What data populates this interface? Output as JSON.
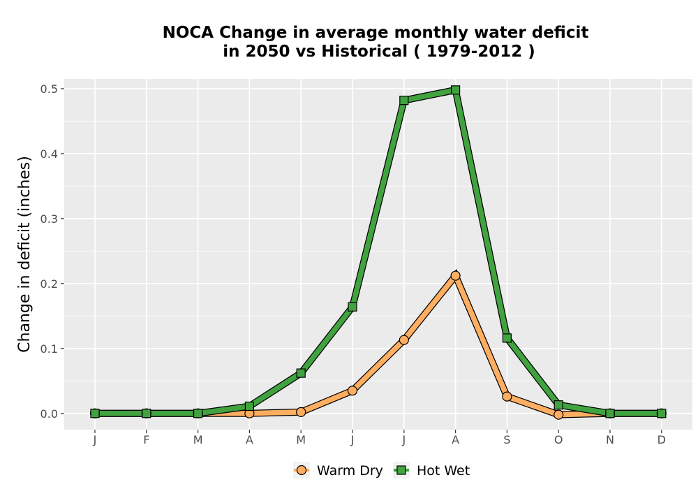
{
  "chart_data": {
    "type": "line",
    "title": "NOCA  Change in average monthly water deficit",
    "subtitle": "in 2050 vs Historical ( 1979-2012 )",
    "xlabel": "",
    "ylabel": "Change in deficit (inches)",
    "categories": [
      "J",
      "F",
      "M",
      "A",
      "M",
      "J",
      "J",
      "A",
      "S",
      "O",
      "N",
      "D"
    ],
    "ylim": [
      -0.025,
      0.515
    ],
    "yticks": [
      0.0,
      0.1,
      0.2,
      0.3,
      0.4,
      0.5
    ],
    "ytick_labels": [
      "0.0",
      "0.1",
      "0.2",
      "0.3",
      "0.4",
      "0.5"
    ],
    "grid": true,
    "legend_position": "bottom",
    "series": [
      {
        "name": "Warm Dry",
        "marker": "circle",
        "color": "#fdae61",
        "values": [
          0.0,
          0.0,
          0.0,
          0.0,
          0.002,
          0.035,
          0.113,
          0.212,
          0.026,
          -0.002,
          0.0,
          0.0
        ]
      },
      {
        "name": "Hot Wet",
        "marker": "square",
        "color": "#41a33f",
        "values": [
          0.0,
          0.0,
          0.0,
          0.011,
          0.062,
          0.164,
          0.482,
          0.498,
          0.116,
          0.013,
          0.0,
          0.0
        ]
      }
    ],
    "colors": {
      "panel_background": "#ebebeb",
      "grid": "#ffffff",
      "outline": "#000000"
    }
  }
}
